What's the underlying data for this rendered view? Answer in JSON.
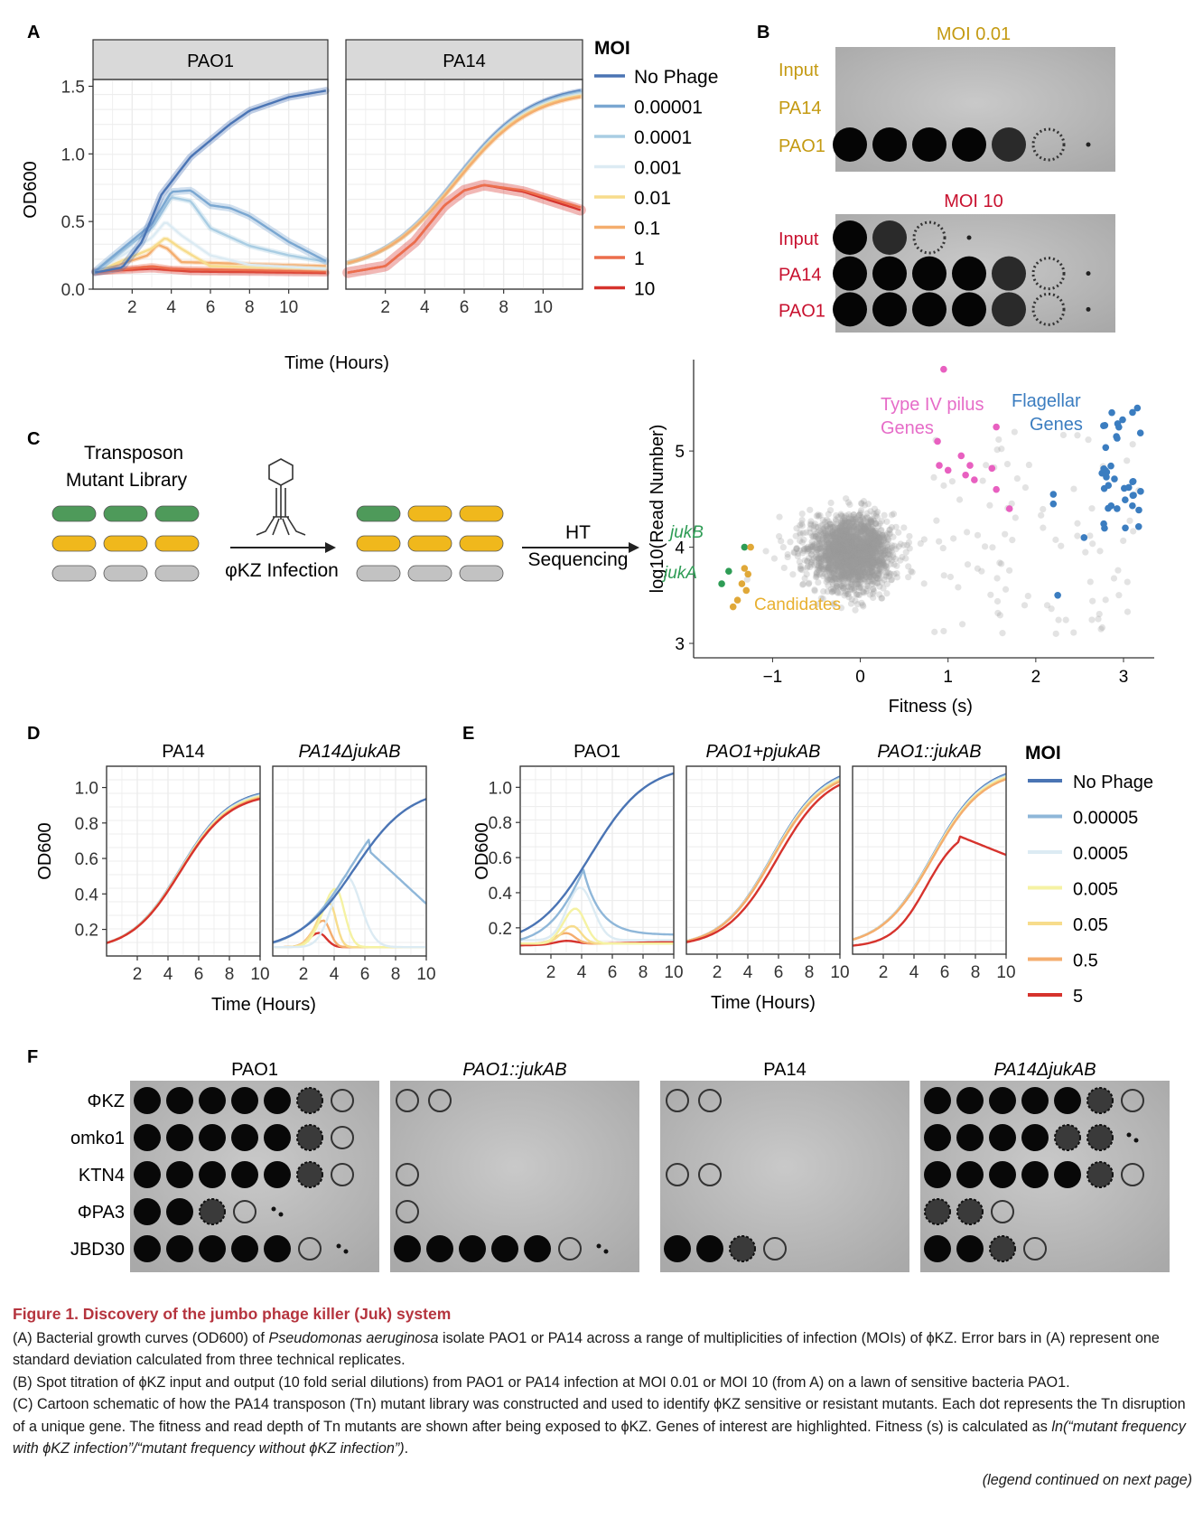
{
  "panelA": {
    "letter": "A",
    "facets": [
      "PAO1",
      "PA14"
    ],
    "ylabel": "OD600",
    "xlabel": "Time (Hours)",
    "yticks": [
      "0.0",
      "0.5",
      "1.0",
      "1.5"
    ],
    "xticks": [
      "2",
      "4",
      "6",
      "8",
      "10"
    ],
    "legend_title": "MOI",
    "legend": [
      "No Phage",
      "0.00001",
      "0.0001",
      "0.001",
      "0.01",
      "0.1",
      "1",
      "10"
    ],
    "colors": [
      "#4a74b4",
      "#7aa7d1",
      "#a9cde3",
      "#dcebf3",
      "#f7dc8c",
      "#f4ad6e",
      "#ec6e4c",
      "#d6332d"
    ]
  },
  "panelB": {
    "letter": "B",
    "plates": [
      {
        "title": "MOI 0.01",
        "color": "#c49a12",
        "rows": [
          "Input",
          "PA14",
          "PAO1"
        ]
      },
      {
        "title": "MOI 10",
        "color": "#c8102e",
        "rows": [
          "Input",
          "PA14",
          "PAO1"
        ]
      }
    ]
  },
  "panelC": {
    "letter": "C",
    "library_label": "Transposon\nMutant Library",
    "infection_label": "φKZ Infection",
    "seq_label": "HT\nSequencing",
    "scatter": {
      "ylabel": "log10(Read Number)",
      "xlabel": "Fitness (s)",
      "xticks": [
        "−1",
        "0",
        "1",
        "2",
        "3"
      ],
      "yticks": [
        "3",
        "4",
        "5"
      ],
      "labels": {
        "jukB": "jukB",
        "jukA": "jukA",
        "candidates": "Candidates",
        "pilus": "Type IV pilus\nGenes",
        "flagellar": "Flagellar\nGenes"
      }
    }
  },
  "panelD": {
    "letter": "D",
    "facets": [
      "PA14",
      "PA14ΔjukAB"
    ],
    "ylabel": "OD600",
    "xlabel": "Time (Hours)",
    "yticks": [
      "0.2",
      "0.4",
      "0.6",
      "0.8",
      "1.0"
    ],
    "xticks": [
      "2",
      "4",
      "6",
      "8",
      "10"
    ]
  },
  "panelE": {
    "letter": "E",
    "facets": [
      "PAO1",
      "PAO1+pjukAB",
      "PAO1::jukAB"
    ],
    "ylabel": "OD600",
    "xlabel": "Time (Hours)",
    "yticks": [
      "0.2",
      "0.4",
      "0.6",
      "0.8",
      "1.0"
    ],
    "xticks": [
      "2",
      "4",
      "6",
      "8",
      "10"
    ],
    "legend_title": "MOI",
    "legend": [
      "No Phage",
      "0.00005",
      "0.0005",
      "0.005",
      "0.05",
      "0.5",
      "5"
    ],
    "colors": [
      "#4a74b4",
      "#8fb7d9",
      "#dcebf3",
      "#f5f2a3",
      "#f7dc8c",
      "#f4ad6e",
      "#d6332d"
    ]
  },
  "panelF": {
    "letter": "F",
    "plates": [
      "PAO1",
      "PAO1::jukAB",
      "PA14",
      "PA14ΔjukAB"
    ],
    "rows": [
      "ΦKZ",
      "omko1",
      "KTN4",
      "ΦPA3",
      "JBD30"
    ]
  },
  "caption": {
    "title": "Figure 1. Discovery of the jumbo phage killer (Juk) system",
    "a_pre": "(A) Bacterial growth curves (OD600) of ",
    "a_species": "Pseudomonas aeruginosa",
    "a_post": " isolate PAO1 or PA14 across a range of multiplicities of infection (MOIs) of ϕKZ. Error bars in (A) represent one standard deviation calculated from three technical replicates.",
    "b": "(B) Spot titration of ϕKZ input and output (10 fold serial dilutions) from PAO1 or PA14 infection at MOI 0.01 or MOI 10 (from A) on a lawn of sensitive bacteria PAO1.",
    "c_pre": "(C) Cartoon schematic of how the PA14 transposon (Tn) mutant library was constructed and used to identify ϕKZ sensitive or  resistant mutants. Each dot represents the Tn disruption of a unique gene. The fitness and read depth of Tn mutants are shown after being exposed to ϕKZ. Genes of interest are highlighted. Fitness (s) is calculated as ",
    "c_formula": "ln(“mutant frequency with ϕKZ infection”/“mutant frequency without ϕKZ infection”)",
    "c_post": ".",
    "continued": "(legend continued on next page)"
  }
}
